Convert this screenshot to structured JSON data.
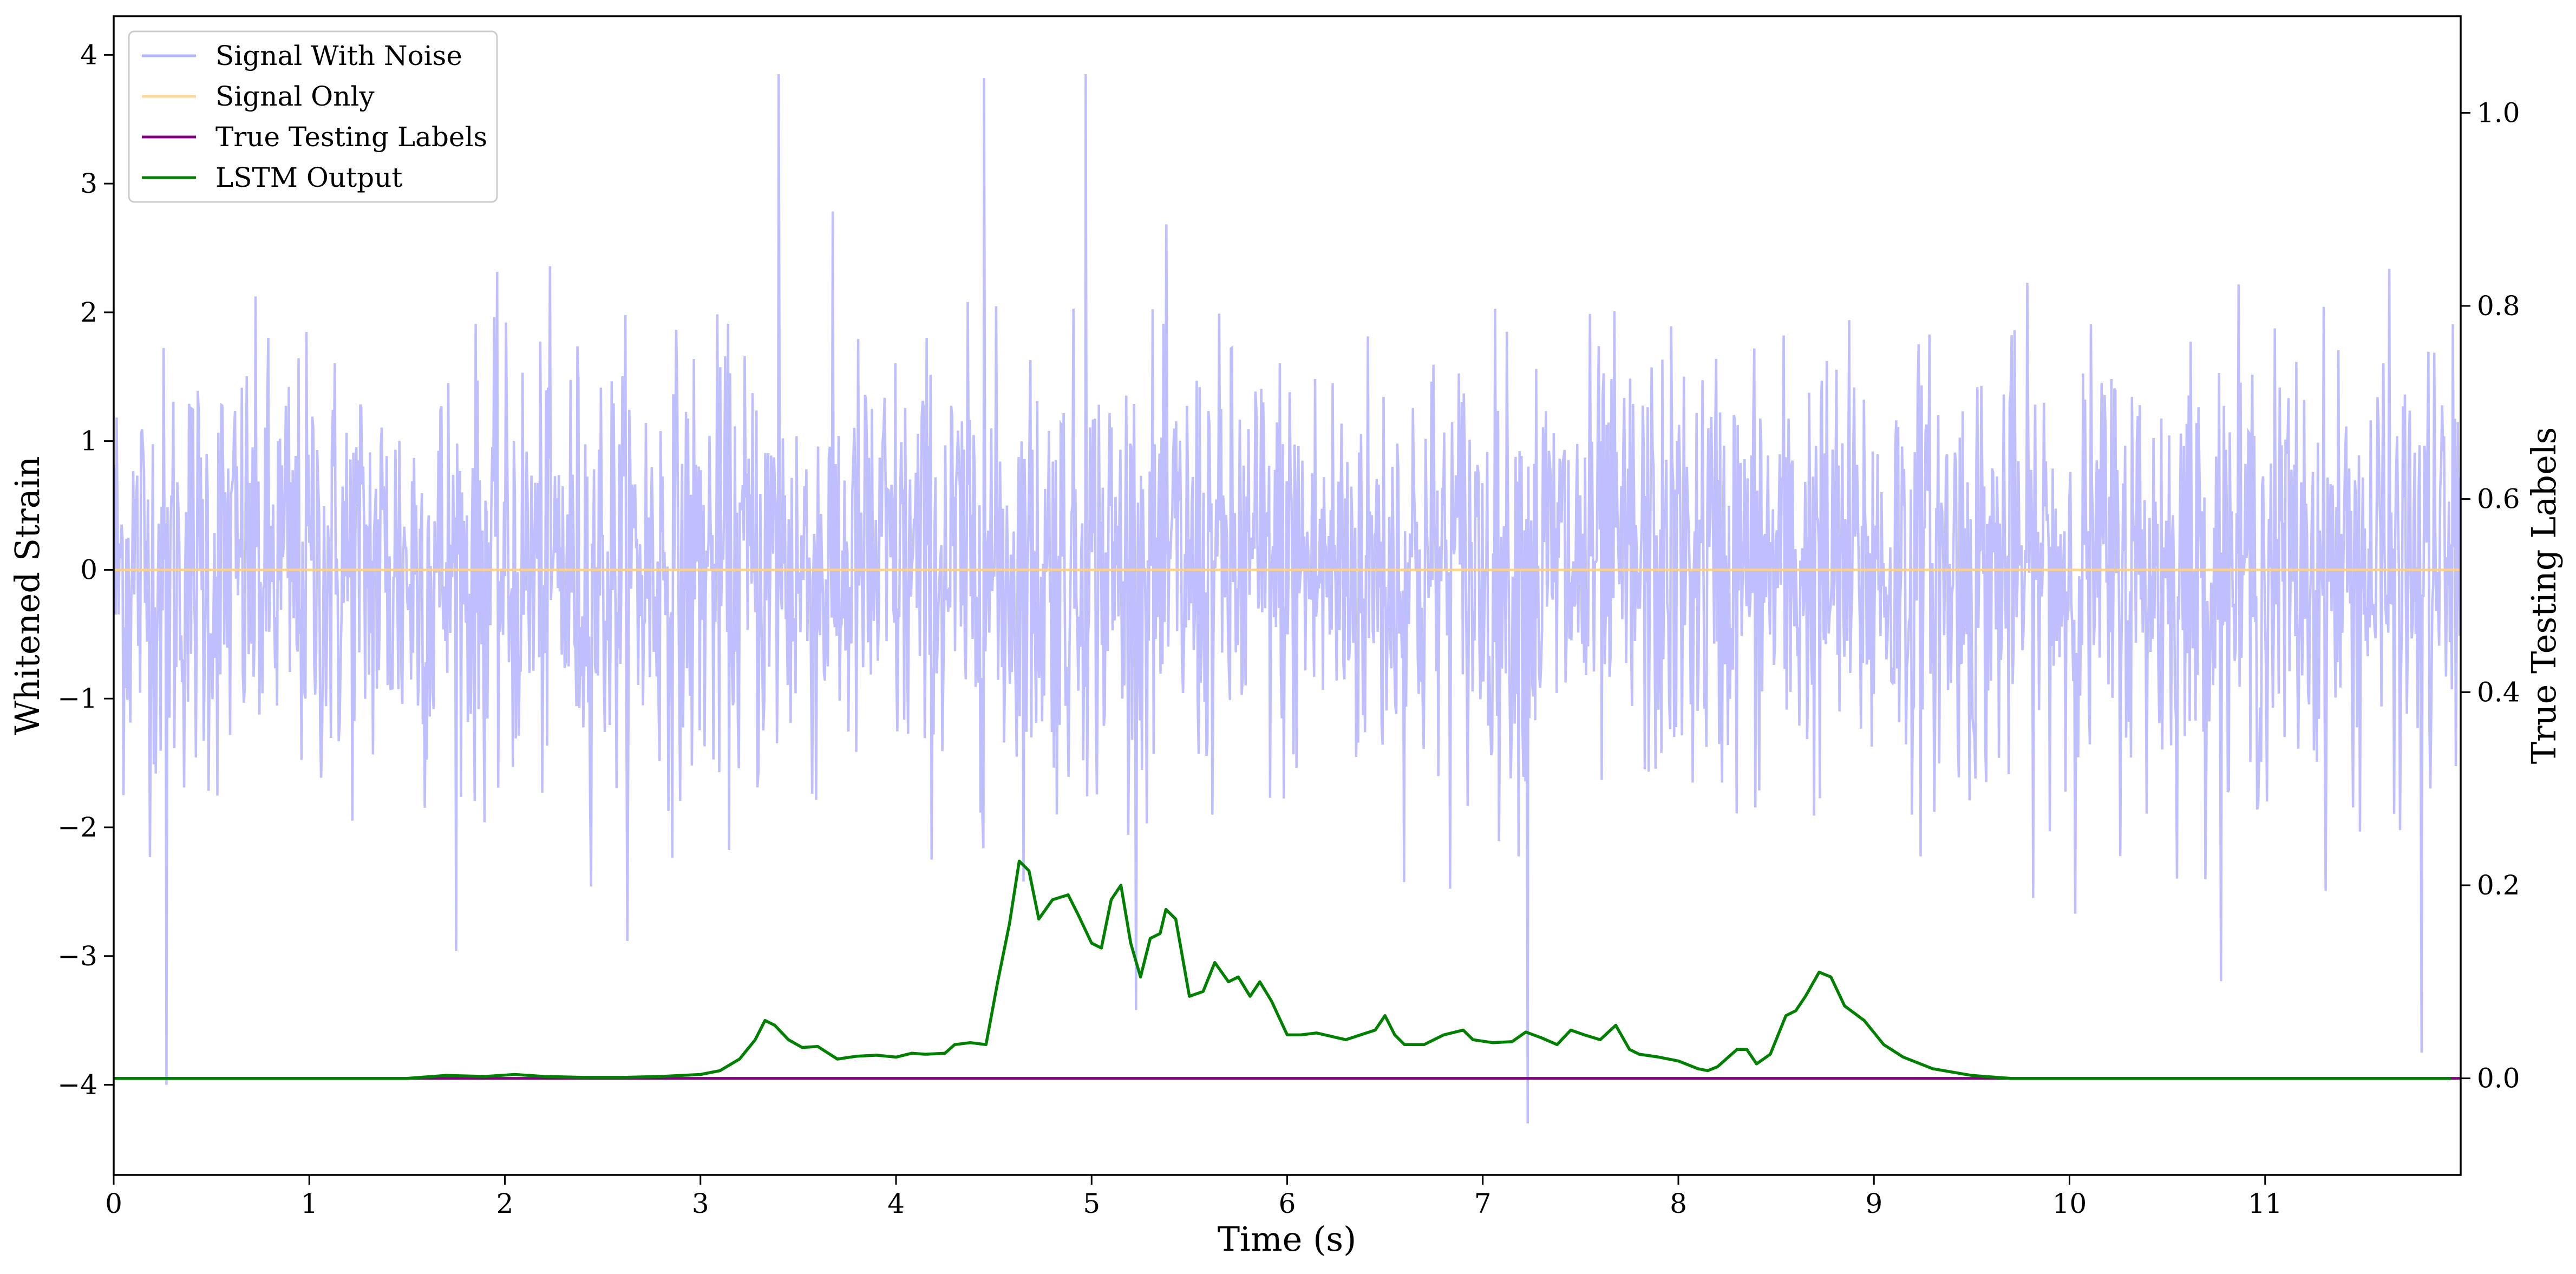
{
  "chart_data": {
    "type": "line",
    "xlabel": "Time (s)",
    "ylabel_left": "Whitened Strain",
    "ylabel_right": "True Testing Labels",
    "xlim": [
      0,
      12.0
    ],
    "ylim_left": [
      -4.7,
      4.3
    ],
    "ylim_right": [
      -0.1,
      1.1
    ],
    "x_ticks": [
      "0",
      "1",
      "2",
      "3",
      "4",
      "5",
      "6",
      "7",
      "8",
      "9",
      "10",
      "11"
    ],
    "y_left_ticks": [
      "−4",
      "−3",
      "−2",
      "−1",
      "0",
      "1",
      "2",
      "3",
      "4"
    ],
    "y_right_ticks": [
      "0.0",
      "0.2",
      "0.4",
      "0.6",
      "0.8",
      "1.0"
    ],
    "grid": false,
    "legend_position": "upper-left",
    "legend": [
      "Signal With Noise",
      "Signal Only",
      "True Testing Labels",
      "LSTM Output"
    ],
    "colors": {
      "signal_with_noise": "#8080ff",
      "signal_only": "#ffd080",
      "true_labels": "#800080",
      "lstm": "#008000"
    },
    "series": [
      {
        "name": "Signal With Noise",
        "axis": "left",
        "description_stats": {
          "mean": 0,
          "approx_std": 0.85,
          "n_samples": 2400,
          "min": -4.3,
          "max": 3.85
        },
        "notable_peaks": [
          {
            "x": 0.27,
            "y": -4.0
          },
          {
            "x": 3.4,
            "y": 3.85
          },
          {
            "x": 4.45,
            "y": 3.82
          },
          {
            "x": 4.97,
            "y": 3.85
          },
          {
            "x": 7.23,
            "y": -4.3
          },
          {
            "x": 11.8,
            "y": -3.75
          }
        ]
      },
      {
        "name": "Signal Only",
        "axis": "left",
        "x": [
          0,
          12.0
        ],
        "y": [
          0,
          0
        ]
      },
      {
        "name": "True Testing Labels",
        "axis": "right",
        "x": [
          0,
          12.0
        ],
        "y": [
          0,
          0
        ]
      },
      {
        "name": "LSTM Output",
        "axis": "right",
        "x": [
          0.0,
          0.5,
          1.0,
          1.5,
          1.7,
          1.9,
          2.05,
          2.2,
          2.4,
          2.6,
          2.8,
          3.0,
          3.1,
          3.2,
          3.28,
          3.33,
          3.38,
          3.45,
          3.52,
          3.6,
          3.7,
          3.8,
          3.9,
          4.0,
          4.08,
          4.15,
          4.25,
          4.3,
          4.38,
          4.46,
          4.52,
          4.58,
          4.63,
          4.68,
          4.73,
          4.8,
          4.88,
          4.93,
          5.0,
          5.05,
          5.1,
          5.15,
          5.2,
          5.25,
          5.3,
          5.35,
          5.38,
          5.43,
          5.5,
          5.57,
          5.63,
          5.7,
          5.75,
          5.81,
          5.86,
          5.92,
          6.0,
          6.07,
          6.15,
          6.3,
          6.45,
          6.5,
          6.55,
          6.6,
          6.7,
          6.8,
          6.9,
          6.95,
          7.05,
          7.15,
          7.22,
          7.3,
          7.38,
          7.45,
          7.52,
          7.6,
          7.68,
          7.75,
          7.8,
          7.9,
          8.0,
          8.1,
          8.15,
          8.2,
          8.3,
          8.35,
          8.4,
          8.47,
          8.55,
          8.6,
          8.65,
          8.72,
          8.78,
          8.85,
          8.95,
          9.05,
          9.15,
          9.3,
          9.5,
          9.7,
          10.0,
          11.0,
          11.95
        ],
        "y": [
          0.0,
          0.0,
          0.0,
          0.0,
          0.003,
          0.002,
          0.004,
          0.002,
          0.001,
          0.001,
          0.002,
          0.004,
          0.008,
          0.02,
          0.04,
          0.06,
          0.055,
          0.04,
          0.032,
          0.033,
          0.02,
          0.023,
          0.024,
          0.022,
          0.026,
          0.025,
          0.026,
          0.035,
          0.037,
          0.035,
          0.1,
          0.16,
          0.225,
          0.215,
          0.165,
          0.185,
          0.19,
          0.17,
          0.14,
          0.135,
          0.185,
          0.2,
          0.14,
          0.105,
          0.145,
          0.15,
          0.175,
          0.165,
          0.085,
          0.09,
          0.12,
          0.1,
          0.105,
          0.085,
          0.1,
          0.08,
          0.045,
          0.045,
          0.047,
          0.04,
          0.05,
          0.065,
          0.045,
          0.035,
          0.035,
          0.045,
          0.05,
          0.04,
          0.037,
          0.038,
          0.048,
          0.042,
          0.035,
          0.05,
          0.045,
          0.04,
          0.055,
          0.03,
          0.025,
          0.022,
          0.018,
          0.01,
          0.008,
          0.012,
          0.03,
          0.03,
          0.015,
          0.025,
          0.065,
          0.07,
          0.085,
          0.11,
          0.105,
          0.075,
          0.06,
          0.035,
          0.022,
          0.01,
          0.003,
          0.0,
          0.0,
          0.0,
          0.0
        ]
      }
    ]
  }
}
